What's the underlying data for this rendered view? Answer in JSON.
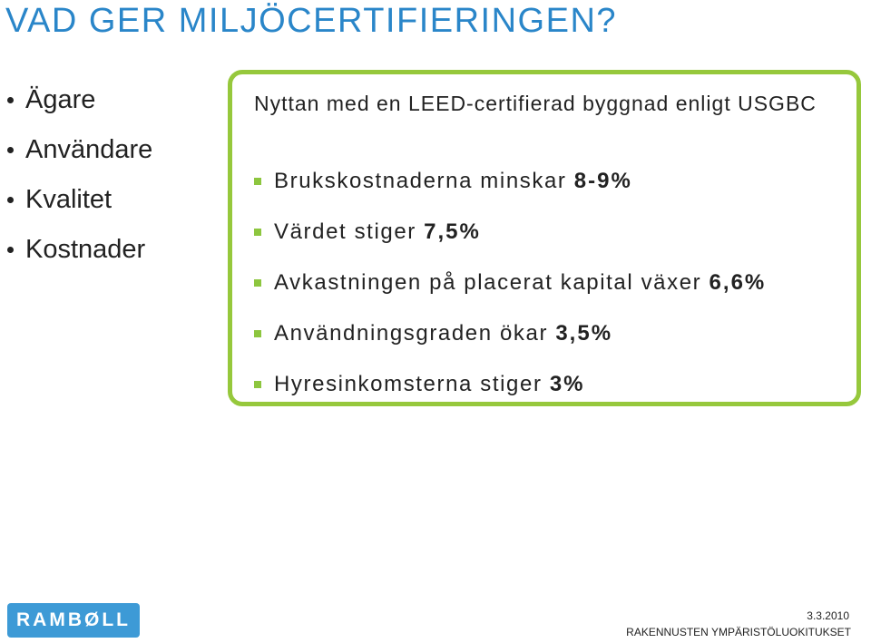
{
  "title": "VAD GER MILJÖCERTIFIERINGEN?",
  "left_items": [
    "Ägare",
    "Användare",
    "Kvalitet",
    "Kostnader"
  ],
  "box": {
    "heading": "Nyttan med en LEED-certifierad byggnad enligt USGBC",
    "items": [
      {
        "text": "Brukskostnaderna minskar ",
        "value": "8-9%"
      },
      {
        "text": "Värdet stiger ",
        "value": "7,5%"
      },
      {
        "text": "Avkastningen på placerat kapital växer ",
        "value": "6,6%"
      },
      {
        "text": "Användningsgraden ökar ",
        "value": "3,5%"
      },
      {
        "text": "Hyresinkomsterna stiger ",
        "value": "3%"
      }
    ]
  },
  "logo_text": "RAMBØLL",
  "date": "3.3.2010",
  "footer": "RAKENNUSTEN YMPÄRISTÖLUOKITUKSET",
  "colors": {
    "title": "#2a86c9",
    "box_border": "#96c83c",
    "bullet": "#8dc63f",
    "logo_bg": "#3d9ad6"
  }
}
